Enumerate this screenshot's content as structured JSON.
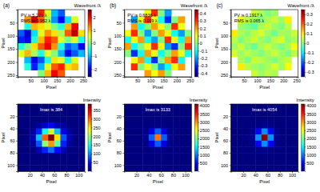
{
  "chart_data": [
    {
      "type": "heatmap",
      "title": "(a)",
      "colorbar_label": "Wavefront /λ",
      "annotations": [
        "PV is 5.221 λ",
        "RMS is 0.952 λ"
      ],
      "x_label": "Pixel",
      "y_label": "Pixel",
      "xlim": [
        0,
        256
      ],
      "ylim": [
        0,
        256
      ],
      "xticks": [
        50,
        100,
        150,
        200,
        250
      ],
      "yticks": [
        50,
        100,
        150,
        200,
        250
      ],
      "colorbar_lim": [
        -2.6,
        2.6
      ],
      "colorbar_ticks": [
        -2,
        -1,
        0,
        1,
        2
      ],
      "z": [
        [
          null,
          null,
          null,
          1.8,
          0.5,
          -1.0,
          -1.5,
          null,
          null,
          null
        ],
        [
          null,
          1.2,
          2.2,
          1.5,
          0.2,
          -1.2,
          -2.0,
          -0.8,
          0.5,
          null
        ],
        [
          null,
          -0.5,
          1.0,
          0.8,
          0.5,
          0.0,
          -0.5,
          1.0,
          2.0,
          null
        ],
        [
          -1.5,
          -2.2,
          -0.8,
          0.5,
          1.2,
          0.8,
          0.2,
          1.5,
          2.3,
          0.8
        ],
        [
          -1.8,
          -2.0,
          -0.5,
          1.0,
          1.8,
          1.5,
          0.5,
          0.0,
          0.5,
          -0.5
        ],
        [
          -0.5,
          0.0,
          0.8,
          1.5,
          2.0,
          1.2,
          -0.5,
          -1.5,
          -1.2,
          -2.0
        ],
        [
          0.5,
          1.0,
          0.2,
          -0.5,
          0.5,
          0.0,
          -1.0,
          -2.0,
          -1.5,
          -1.0
        ],
        [
          null,
          -1.0,
          -2.0,
          -1.5,
          -0.5,
          0.8,
          0.5,
          -0.5,
          0.5,
          null
        ],
        [
          null,
          -0.5,
          -1.8,
          -1.0,
          0.5,
          1.5,
          1.8,
          0.8,
          1.0,
          null
        ],
        [
          null,
          null,
          null,
          0.0,
          1.0,
          2.0,
          1.5,
          null,
          null,
          null
        ]
      ]
    },
    {
      "type": "heatmap",
      "title": "(b)",
      "colorbar_label": "Wavefront /λ",
      "annotations": [
        "PV is 0.6836 λ",
        "RMS is 0.109 λ"
      ],
      "x_label": "Pixel",
      "y_label": "Pixel",
      "xlim": [
        0,
        256
      ],
      "ylim": [
        0,
        256
      ],
      "xticks": [
        50,
        100,
        150,
        200,
        250
      ],
      "yticks": [
        50,
        100,
        150,
        200,
        250
      ],
      "colorbar_lim": [
        -0.45,
        0.45
      ],
      "colorbar_ticks": [
        -0.4,
        -0.3,
        -0.2,
        -0.1,
        0,
        0.1,
        0.2,
        0.3,
        0.4
      ],
      "z": [
        [
          null,
          null,
          null,
          0.1,
          0.3,
          0.0,
          -0.2,
          null,
          null,
          null
        ],
        [
          null,
          -0.2,
          0.1,
          0.3,
          0.1,
          -0.1,
          -0.3,
          0.0,
          0.2,
          null
        ],
        [
          null,
          0.2,
          -0.1,
          0.0,
          0.2,
          0.1,
          0.0,
          0.3,
          0.1,
          null
        ],
        [
          0.1,
          0.3,
          0.0,
          -0.2,
          0.0,
          0.2,
          0.1,
          -0.1,
          -0.2,
          0.0
        ],
        [
          -0.1,
          0.1,
          0.2,
          -0.1,
          -0.2,
          0.0,
          0.3,
          0.1,
          -0.1,
          0.2
        ],
        [
          0.2,
          -0.1,
          0.0,
          0.1,
          0.3,
          0.1,
          -0.2,
          -0.3,
          0.0,
          0.3
        ],
        [
          0.0,
          -0.3,
          -0.1,
          0.2,
          0.1,
          -0.1,
          0.0,
          0.2,
          0.1,
          -0.1
        ],
        [
          null,
          0.1,
          0.2,
          -0.1,
          -0.3,
          0.0,
          0.2,
          0.3,
          -0.1,
          null
        ],
        [
          null,
          0.3,
          0.0,
          0.1,
          0.0,
          -0.2,
          -0.1,
          0.1,
          0.2,
          null
        ],
        [
          null,
          null,
          null,
          0.2,
          0.1,
          0.2,
          0.0,
          null,
          null,
          null
        ]
      ]
    },
    {
      "type": "heatmap",
      "title": "(c)",
      "colorbar_label": "Wavefront /λ",
      "annotations": [
        "PV is 0.1917 λ",
        "RMS is 0.065 λ"
      ],
      "x_label": "Pixel",
      "y_label": "Pixel",
      "xlim": [
        0,
        256
      ],
      "ylim": [
        0,
        256
      ],
      "xticks": [
        50,
        100,
        150,
        200,
        250
      ],
      "yticks": [
        50,
        100,
        150,
        200,
        250
      ],
      "colorbar_lim": [
        -0.35,
        0.35
      ],
      "colorbar_ticks": [
        -0.3,
        -0.2,
        -0.1,
        0,
        0.1,
        0.2,
        0.3
      ],
      "z": [
        [
          null,
          null,
          null,
          0.05,
          0.03,
          0.0,
          0.02,
          null,
          null,
          null
        ],
        [
          null,
          0.08,
          0.04,
          0.02,
          0.0,
          0.03,
          0.05,
          0.02,
          0.1,
          null
        ],
        [
          null,
          0.02,
          0.0,
          -0.02,
          0.03,
          0.05,
          0.02,
          0.0,
          0.04,
          null
        ],
        [
          0.1,
          0.03,
          0.01,
          0.04,
          0.06,
          0.02,
          -0.01,
          0.03,
          0.02,
          0.05
        ],
        [
          0.04,
          0.0,
          0.03,
          0.05,
          0.02,
          0.0,
          0.04,
          0.06,
          0.01,
          0.03
        ],
        [
          0.02,
          0.05,
          0.01,
          -0.01,
          0.03,
          0.05,
          0.02,
          0.0,
          0.03,
          0.08
        ],
        [
          0.06,
          0.02,
          0.04,
          0.02,
          0.0,
          0.03,
          0.05,
          0.02,
          0.0,
          0.04
        ],
        [
          null,
          0.03,
          0.0,
          0.05,
          0.04,
          0.02,
          0.0,
          0.03,
          0.05,
          null
        ],
        [
          null,
          0.1,
          0.04,
          0.02,
          0.01,
          0.03,
          0.06,
          0.02,
          0.08,
          null
        ],
        [
          null,
          null,
          null,
          0.05,
          0.02,
          0.04,
          0.03,
          null,
          null,
          null
        ]
      ]
    },
    {
      "type": "heatmap",
      "colorbar_label": "Intensity",
      "annotations": [
        "Imax is 384"
      ],
      "x_label": "Pixel",
      "y_label": "Pixel",
      "xlim": [
        0,
        110
      ],
      "ylim": [
        0,
        110
      ],
      "xticks": [
        20,
        40,
        60,
        80,
        100
      ],
      "yticks": [
        20,
        40,
        60,
        80,
        100
      ],
      "colorbar_lim": [
        0,
        384
      ],
      "colorbar_ticks": [
        50,
        100,
        150,
        200,
        250,
        300,
        350
      ],
      "z": [
        [
          0,
          0,
          0,
          0,
          0,
          0,
          0,
          0,
          0,
          0,
          0
        ],
        [
          0,
          0,
          0,
          0,
          0,
          0,
          0,
          0,
          0,
          0,
          0
        ],
        [
          0,
          0,
          0,
          0,
          0,
          0,
          0,
          0,
          0,
          0,
          0
        ],
        [
          0,
          0,
          0,
          10,
          30,
          50,
          20,
          10,
          0,
          0,
          0
        ],
        [
          0,
          0,
          10,
          60,
          150,
          220,
          120,
          40,
          10,
          0,
          0
        ],
        [
          0,
          0,
          20,
          120,
          300,
          384,
          250,
          80,
          20,
          0,
          0
        ],
        [
          0,
          0,
          10,
          80,
          200,
          280,
          180,
          60,
          10,
          0,
          0
        ],
        [
          0,
          0,
          0,
          20,
          60,
          90,
          50,
          20,
          0,
          0,
          0
        ],
        [
          0,
          0,
          0,
          0,
          0,
          0,
          0,
          0,
          0,
          0,
          0
        ],
        [
          0,
          0,
          0,
          0,
          0,
          0,
          0,
          0,
          0,
          0,
          0
        ],
        [
          0,
          0,
          0,
          0,
          0,
          0,
          0,
          0,
          0,
          0,
          0
        ]
      ]
    },
    {
      "type": "heatmap",
      "colorbar_label": "Intensity",
      "annotations": [
        "Imax is 3133"
      ],
      "x_label": "Pixel",
      "y_label": "Pixel",
      "xlim": [
        0,
        110
      ],
      "ylim": [
        0,
        110
      ],
      "xticks": [
        20,
        40,
        60,
        80,
        100
      ],
      "yticks": [
        20,
        40,
        60,
        80,
        100
      ],
      "colorbar_lim": [
        0,
        4100
      ],
      "colorbar_ticks": [
        500,
        1000,
        1500,
        2000,
        2500,
        3000,
        3500,
        4000
      ],
      "z": [
        [
          0,
          0,
          0,
          0,
          0,
          0,
          0,
          0,
          0,
          0,
          0
        ],
        [
          0,
          0,
          0,
          0,
          0,
          0,
          0,
          0,
          0,
          0,
          0
        ],
        [
          0,
          0,
          0,
          0,
          0,
          0,
          0,
          0,
          0,
          0,
          0
        ],
        [
          0,
          0,
          0,
          0,
          20,
          40,
          20,
          0,
          0,
          0,
          0
        ],
        [
          0,
          0,
          0,
          30,
          400,
          900,
          400,
          30,
          0,
          0,
          0
        ],
        [
          0,
          0,
          0,
          50,
          900,
          3133,
          900,
          50,
          0,
          0,
          0
        ],
        [
          0,
          0,
          0,
          30,
          400,
          900,
          400,
          30,
          0,
          0,
          0
        ],
        [
          0,
          0,
          0,
          0,
          20,
          40,
          20,
          0,
          0,
          0,
          0
        ],
        [
          0,
          0,
          0,
          0,
          0,
          0,
          0,
          0,
          0,
          0,
          0
        ],
        [
          0,
          0,
          0,
          0,
          0,
          0,
          0,
          0,
          0,
          0,
          0
        ],
        [
          0,
          0,
          0,
          0,
          0,
          0,
          0,
          0,
          0,
          0,
          0
        ]
      ]
    },
    {
      "type": "heatmap",
      "colorbar_label": "Intensity",
      "annotations": [
        "Imax is 4054"
      ],
      "x_label": "Pixel",
      "y_label": "Pixel",
      "xlim": [
        0,
        110
      ],
      "ylim": [
        0,
        110
      ],
      "xticks": [
        20,
        40,
        60,
        80,
        100
      ],
      "yticks": [
        20,
        40,
        60,
        80,
        100
      ],
      "colorbar_lim": [
        0,
        4100
      ],
      "colorbar_ticks": [
        500,
        1000,
        1500,
        2000,
        2500,
        3000,
        3500,
        4000
      ],
      "z": [
        [
          0,
          0,
          0,
          0,
          0,
          0,
          0,
          0,
          0,
          0,
          0
        ],
        [
          0,
          0,
          0,
          0,
          0,
          0,
          0,
          0,
          0,
          0,
          0
        ],
        [
          0,
          0,
          0,
          0,
          0,
          0,
          0,
          0,
          0,
          0,
          0
        ],
        [
          0,
          0,
          0,
          0,
          30,
          60,
          30,
          0,
          0,
          0,
          0
        ],
        [
          0,
          0,
          0,
          40,
          500,
          1100,
          500,
          40,
          0,
          0,
          0
        ],
        [
          0,
          0,
          0,
          60,
          1100,
          4054,
          1100,
          60,
          0,
          0,
          0
        ],
        [
          0,
          0,
          0,
          40,
          500,
          1100,
          500,
          40,
          0,
          0,
          0
        ],
        [
          0,
          0,
          0,
          0,
          30,
          60,
          30,
          0,
          0,
          0,
          0
        ],
        [
          0,
          0,
          0,
          0,
          0,
          0,
          0,
          0,
          0,
          0,
          0
        ],
        [
          0,
          0,
          0,
          0,
          0,
          0,
          0,
          0,
          0,
          0,
          0
        ],
        [
          0,
          0,
          0,
          0,
          0,
          0,
          0,
          0,
          0,
          0,
          0
        ]
      ]
    }
  ]
}
